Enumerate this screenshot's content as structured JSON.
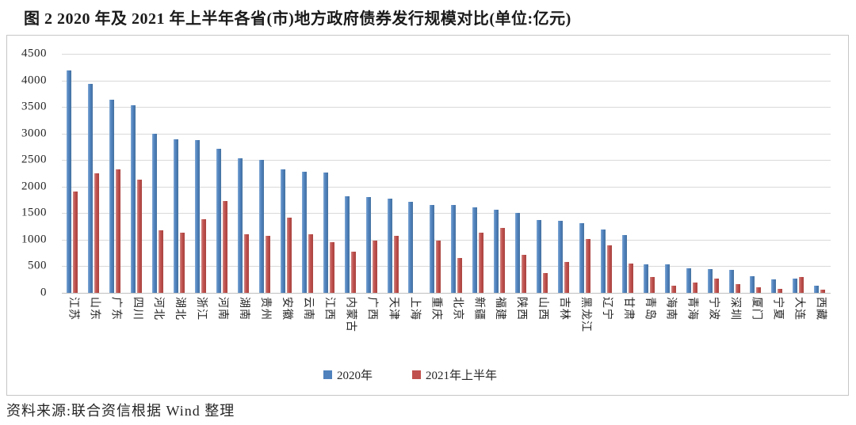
{
  "page": {
    "title": "图 2  2020 年及 2021 年上半年各省(市)地方政府债券发行规模对比(单位:亿元)",
    "source": "资料来源:联合资信根据 Wind 整理"
  },
  "chart_data": {
    "type": "bar",
    "title": "2020 年及 2021 年上半年各省(市)地方政府债券发行规模对比",
    "unit": "亿元",
    "categories": [
      "江苏",
      "山东",
      "广东",
      "四川",
      "河北",
      "湖北",
      "浙江",
      "河南",
      "湖南",
      "贵州",
      "安徽",
      "云南",
      "江西",
      "内蒙古",
      "广西",
      "天津",
      "上海",
      "重庆",
      "北京",
      "新疆",
      "福建",
      "陕西",
      "山西",
      "吉林",
      "黑龙江",
      "辽宁",
      "甘肃",
      "青岛",
      "海南",
      "青海",
      "宁波",
      "深圳",
      "厦门",
      "宁夏",
      "大连",
      "西藏"
    ],
    "series": [
      {
        "name": "2020年",
        "color": "#4F81BD",
        "values": [
          4190,
          3930,
          3640,
          3530,
          2990,
          2890,
          2870,
          2710,
          2530,
          2510,
          2320,
          2280,
          2260,
          1820,
          1810,
          1770,
          1720,
          1660,
          1650,
          1610,
          1560,
          1500,
          1370,
          1360,
          1310,
          1200,
          1090,
          530,
          530,
          470,
          450,
          440,
          320,
          260,
          270,
          130
        ]
      },
      {
        "name": "2021年上半年",
        "color": "#C0504D",
        "values": [
          1910,
          2250,
          2320,
          2130,
          1180,
          1140,
          1380,
          1730,
          1100,
          1070,
          1410,
          1100,
          960,
          770,
          980,
          1080,
          0,
          980,
          660,
          1140,
          1230,
          720,
          370,
          580,
          1010,
          900,
          550,
          300,
          140,
          190,
          270,
          160,
          100,
          80,
          300,
          60
        ]
      }
    ],
    "ylim": [
      0,
      4500
    ],
    "ytick_step": 500,
    "grid": true,
    "legend_position": "bottom"
  }
}
